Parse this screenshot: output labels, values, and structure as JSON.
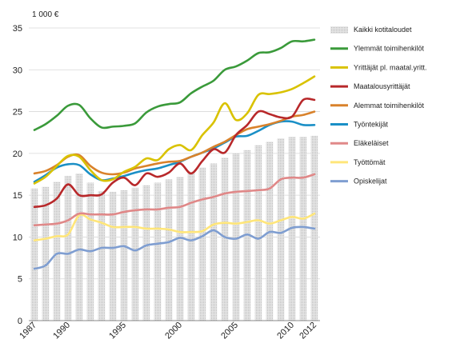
{
  "chart_data": {
    "type": "line",
    "unit_label": "1 000 €",
    "ylim": [
      0,
      35
    ],
    "yticks": [
      0,
      5,
      10,
      15,
      20,
      25,
      30,
      35
    ],
    "x": [
      1987,
      1988,
      1989,
      1990,
      1991,
      1992,
      1993,
      1994,
      1995,
      1996,
      1997,
      1998,
      1999,
      2000,
      2001,
      2002,
      2003,
      2004,
      2005,
      2006,
      2007,
      2008,
      2009,
      2010,
      2011,
      2012
    ],
    "xtick_labels": [
      "1987",
      "1990",
      "1995",
      "2000",
      "2005",
      "2010",
      "2012"
    ],
    "grid": "horizontal",
    "legend_position": "right",
    "bars": {
      "name": "Kaikki kotitaloudet",
      "color": "#d4d4d4",
      "values": [
        15.8,
        16.0,
        16.6,
        17.3,
        17.6,
        16.5,
        15.5,
        15.4,
        15.6,
        15.9,
        16.2,
        16.5,
        16.9,
        17.2,
        17.8,
        18.3,
        18.8,
        19.5,
        20.0,
        20.4,
        21.0,
        21.4,
        21.8,
        22.0,
        22.0,
        22.1
      ]
    },
    "series": [
      {
        "name": "Ylemmät toimihenkilöt",
        "color": "#3a9a3a",
        "values": [
          22.8,
          23.5,
          24.5,
          25.7,
          25.8,
          24.2,
          23.1,
          23.2,
          23.3,
          23.6,
          24.9,
          25.6,
          25.9,
          26.1,
          27.2,
          28.0,
          28.7,
          30.0,
          30.4,
          31.1,
          32.0,
          32.1,
          32.6,
          33.4,
          33.4,
          33.6
        ]
      },
      {
        "name": "Yrittäjät pl. maatal.yritt.",
        "color": "#d9c200",
        "values": [
          16.4,
          17.2,
          18.5,
          19.7,
          19.6,
          18.0,
          16.8,
          16.9,
          17.8,
          18.4,
          19.4,
          19.2,
          20.5,
          21.0,
          20.4,
          22.2,
          23.7,
          26.0,
          24.0,
          24.8,
          27.0,
          27.1,
          27.3,
          27.7,
          28.4,
          29.2
        ]
      },
      {
        "name": "Maatalousyrittäjät",
        "color": "#b8282a",
        "values": [
          13.6,
          13.8,
          14.6,
          16.3,
          15.0,
          15.0,
          15.1,
          16.5,
          17.1,
          16.2,
          17.6,
          17.2,
          17.7,
          18.8,
          17.6,
          19.1,
          20.5,
          20.1,
          22.2,
          23.4,
          25.0,
          24.7,
          24.3,
          24.4,
          26.4,
          26.4
        ]
      },
      {
        "name": "Alemmat toimihenkilöt",
        "color": "#d9822b",
        "values": [
          17.6,
          17.9,
          18.6,
          19.6,
          19.8,
          18.5,
          17.7,
          17.5,
          17.7,
          18.2,
          18.5,
          18.8,
          19.0,
          19.1,
          19.6,
          20.1,
          20.8,
          21.4,
          22.2,
          22.9,
          23.2,
          23.5,
          23.9,
          24.4,
          24.6,
          25.0
        ]
      },
      {
        "name": "Työntekijät",
        "color": "#1a8fc6",
        "values": [
          16.6,
          17.4,
          18.3,
          18.7,
          18.6,
          17.5,
          16.8,
          17.0,
          17.3,
          17.7,
          18.0,
          18.2,
          18.6,
          19.0,
          19.6,
          20.1,
          20.6,
          21.3,
          22.0,
          22.1,
          22.7,
          23.4,
          23.8,
          23.8,
          23.4,
          23.4
        ]
      },
      {
        "name": "Eläkeläiset",
        "color": "#e08888",
        "values": [
          11.4,
          11.5,
          11.6,
          12.0,
          12.8,
          12.7,
          12.7,
          12.7,
          13.0,
          13.2,
          13.3,
          13.3,
          13.5,
          13.6,
          14.1,
          14.5,
          14.8,
          15.2,
          15.4,
          15.5,
          15.6,
          15.8,
          16.9,
          17.1,
          17.1,
          17.5
        ]
      },
      {
        "name": "Työttömät",
        "color": "#ffe67a",
        "values": [
          9.6,
          9.8,
          10.1,
          10.3,
          12.6,
          12.1,
          11.7,
          11.2,
          11.2,
          11.2,
          11.0,
          11.0,
          10.9,
          10.6,
          10.6,
          10.7,
          11.5,
          11.7,
          11.6,
          11.8,
          12.0,
          11.6,
          12.0,
          12.4,
          12.2,
          12.8
        ]
      },
      {
        "name": "Opiskelijat",
        "color": "#7f9ed1",
        "values": [
          6.2,
          6.6,
          8.0,
          8.0,
          8.5,
          8.3,
          8.7,
          8.7,
          8.9,
          8.4,
          9.0,
          9.2,
          9.4,
          9.9,
          9.6,
          10.1,
          10.8,
          10.0,
          9.8,
          10.3,
          9.8,
          10.6,
          10.5,
          11.1,
          11.2,
          11.0
        ]
      }
    ]
  }
}
